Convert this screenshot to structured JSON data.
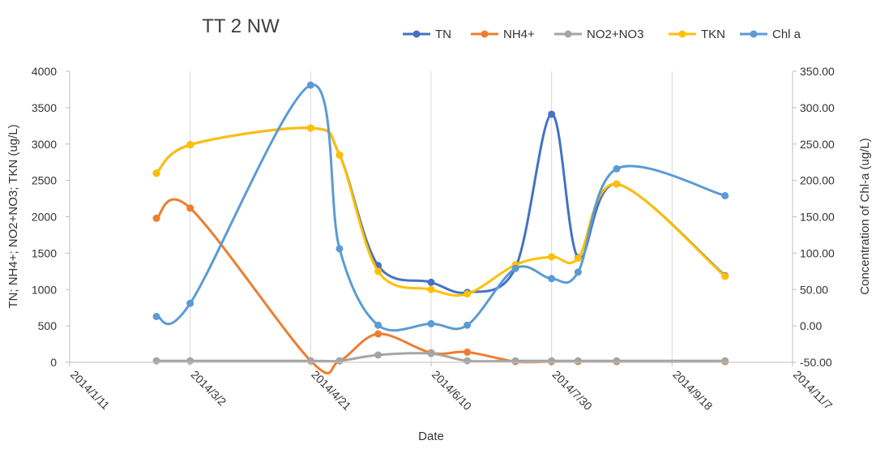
{
  "chart_data": {
    "type": "line",
    "title": "TT 2 NW",
    "xlabel": "Date",
    "ylabel": "TN; NH4+; NO2+NO3; TKN (ug/L)",
    "y2label": "Concentration of Chl-a (ug/L)",
    "xlim": [
      "2014/1/11",
      "2014/11/7"
    ],
    "x_ticks": [
      "2014/1/11",
      "2014/3/2",
      "2014/4/21",
      "2014/6/10",
      "2014/7/30",
      "2014/9/18",
      "2014/11/7"
    ],
    "ylim": [
      0,
      4000
    ],
    "y_ticks": [
      "0",
      "500",
      "1000",
      "1500",
      "2000",
      "2500",
      "3000",
      "3500",
      "4000"
    ],
    "y2lim": [
      -50,
      350
    ],
    "y2_ticks": [
      "-50.00",
      "0.00",
      "50.00",
      "100.00",
      "150.00",
      "200.00",
      "250.00",
      "300.00",
      "350.00"
    ],
    "grid": "vertical",
    "legend_position": "top",
    "series": [
      {
        "name": "TN",
        "color": "#4472C4",
        "axis": "left",
        "points": [
          [
            "2014/2/16",
            2600
          ],
          [
            "2014/3/2",
            2990
          ],
          [
            "2014/4/21",
            3220
          ],
          [
            "2014/5/3",
            2850
          ],
          [
            "2014/5/19",
            1330
          ],
          [
            "2014/6/10",
            1100
          ],
          [
            "2014/6/25",
            960
          ],
          [
            "2014/7/15",
            1300
          ],
          [
            "2014/7/30",
            3410
          ],
          [
            "2014/8/10",
            1440
          ],
          [
            "2014/8/26",
            2450
          ],
          [
            "2014/10/10",
            1190
          ]
        ]
      },
      {
        "name": "NH4+",
        "color": "#ED7D31",
        "axis": "left",
        "points": [
          [
            "2014/2/16",
            1980
          ],
          [
            "2014/3/2",
            2120
          ],
          [
            "2014/4/21",
            20
          ],
          [
            "2014/5/3",
            20
          ],
          [
            "2014/5/19",
            390
          ],
          [
            "2014/6/10",
            130
          ],
          [
            "2014/6/25",
            140
          ],
          [
            "2014/7/15",
            10
          ],
          [
            "2014/7/30",
            10
          ],
          [
            "2014/8/10",
            10
          ],
          [
            "2014/8/26",
            10
          ],
          [
            "2014/10/10",
            10
          ]
        ]
      },
      {
        "name": "NO2+NO3",
        "color": "#A5A5A5",
        "axis": "left",
        "points": [
          [
            "2014/2/16",
            20
          ],
          [
            "2014/3/2",
            20
          ],
          [
            "2014/4/21",
            20
          ],
          [
            "2014/5/3",
            20
          ],
          [
            "2014/5/19",
            100
          ],
          [
            "2014/6/10",
            120
          ],
          [
            "2014/6/25",
            20
          ],
          [
            "2014/7/15",
            20
          ],
          [
            "2014/7/30",
            20
          ],
          [
            "2014/8/10",
            20
          ],
          [
            "2014/8/26",
            20
          ],
          [
            "2014/10/10",
            20
          ]
        ]
      },
      {
        "name": "TKN",
        "color": "#FFC000",
        "axis": "left",
        "points": [
          [
            "2014/2/16",
            2600
          ],
          [
            "2014/3/2",
            2990
          ],
          [
            "2014/4/21",
            3220
          ],
          [
            "2014/5/3",
            2850
          ],
          [
            "2014/5/19",
            1250
          ],
          [
            "2014/6/10",
            1000
          ],
          [
            "2014/6/25",
            940
          ],
          [
            "2014/7/15",
            1340
          ],
          [
            "2014/7/30",
            1450
          ],
          [
            "2014/8/10",
            1430
          ],
          [
            "2014/8/26",
            2450
          ],
          [
            "2014/10/10",
            1180
          ]
        ]
      },
      {
        "name": "Chl a",
        "color": "#5B9BD5",
        "axis": "right",
        "points": [
          [
            "2014/2/16",
            13
          ],
          [
            "2014/3/2",
            31
          ],
          [
            "2014/4/21",
            331
          ],
          [
            "2014/5/3",
            106
          ],
          [
            "2014/5/19",
            1
          ],
          [
            "2014/6/10",
            3
          ],
          [
            "2014/6/25",
            1
          ],
          [
            "2014/7/15",
            79
          ],
          [
            "2014/7/30",
            65
          ],
          [
            "2014/8/10",
            74
          ],
          [
            "2014/8/26",
            216
          ],
          [
            "2014/10/10",
            179
          ]
        ]
      }
    ]
  }
}
